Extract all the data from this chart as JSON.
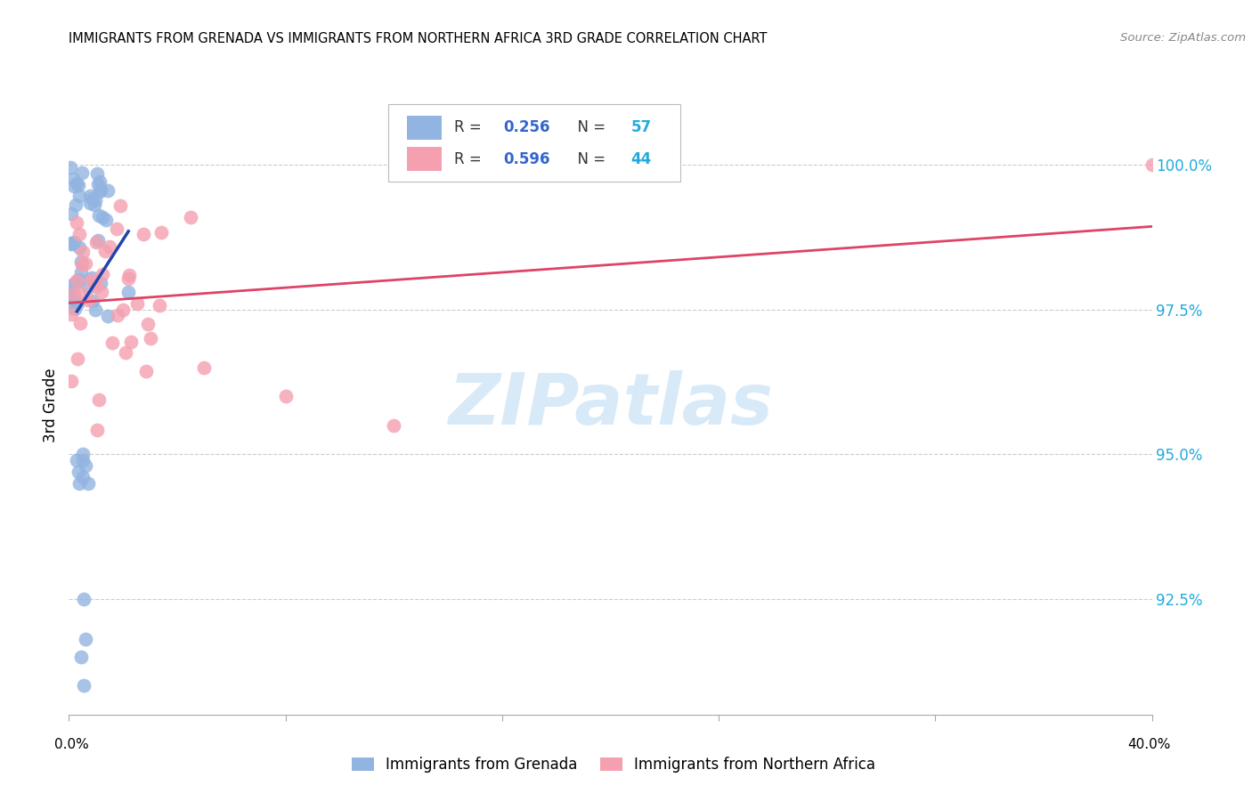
{
  "title": "IMMIGRANTS FROM GRENADA VS IMMIGRANTS FROM NORTHERN AFRICA 3RD GRADE CORRELATION CHART",
  "source": "Source: ZipAtlas.com",
  "ylabel": "3rd Grade",
  "x_min": 0.0,
  "x_max": 40.0,
  "y_min": 90.5,
  "y_max": 101.2,
  "legend_r1": "0.256",
  "legend_n1": "57",
  "legend_r2": "0.596",
  "legend_n2": "44",
  "legend_label1": "Immigrants from Grenada",
  "legend_label2": "Immigrants from Northern Africa",
  "blue_color": "#92b4e0",
  "pink_color": "#f4a0b0",
  "blue_line_color": "#2244aa",
  "pink_line_color": "#dd4466",
  "r_label_color": "#333333",
  "r_value_color": "#3366cc",
  "n_value_color": "#22aadd",
  "watermark_color": "#d8eaf8",
  "y_ticks": [
    92.5,
    95.0,
    97.5,
    100.0
  ],
  "y_tick_labels": [
    "92.5%",
    "95.0%",
    "97.5%",
    "100.0%"
  ]
}
